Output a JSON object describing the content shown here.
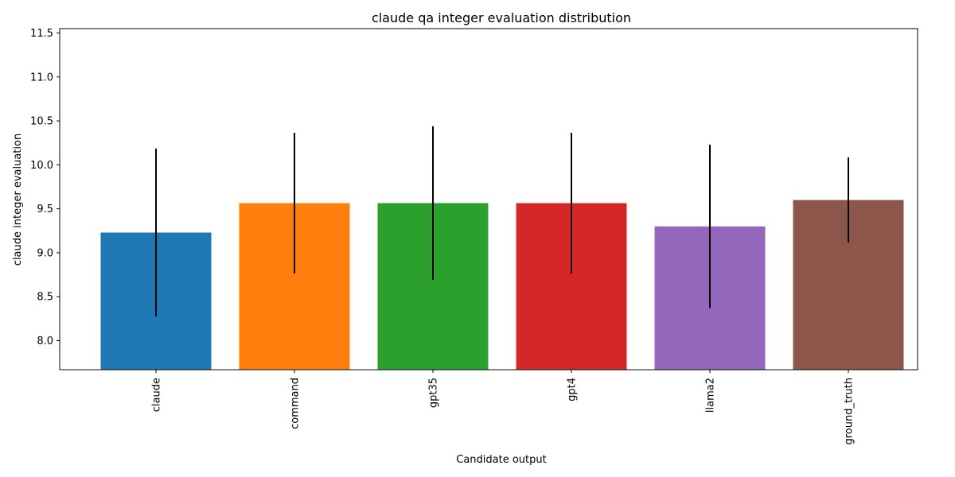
{
  "chart_data": {
    "type": "bar",
    "title": "claude qa integer evaluation distribution",
    "xlabel": "Candidate output",
    "ylabel": "claude integer evaluation",
    "categories": [
      "claude",
      "command",
      "gpt35",
      "gpt4",
      "llama2",
      "ground_truth"
    ],
    "values": [
      9.23,
      9.565,
      9.565,
      9.565,
      9.3,
      9.6
    ],
    "error": [
      0.955,
      0.8,
      0.875,
      0.8,
      0.93,
      0.485
    ],
    "colors": [
      "#1f77b4",
      "#ff7f0e",
      "#2ca02c",
      "#d62728",
      "#9467bd",
      "#8c564b"
    ],
    "error_color": "#000000",
    "ylim": [
      7.67,
      11.55
    ],
    "yticks": [
      8.0,
      8.5,
      9.0,
      9.5,
      10.0,
      10.5,
      11.0,
      11.5
    ],
    "ytick_labels": [
      "8.0",
      "8.5",
      "9.0",
      "9.5",
      "10.0",
      "10.5",
      "11.0",
      "11.5"
    ],
    "xtick_rotation": "vertical",
    "grid": false,
    "legend": "none"
  }
}
